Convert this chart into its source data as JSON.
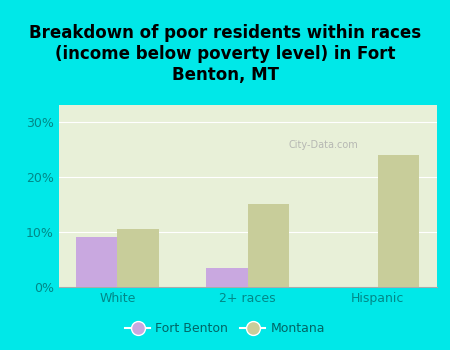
{
  "title": "Breakdown of poor residents within races\n(income below poverty level) in Fort\nBenton, MT",
  "categories": [
    "White",
    "2+ races",
    "Hispanic"
  ],
  "fort_benton_values": [
    9.0,
    3.5,
    0.0
  ],
  "montana_values": [
    10.5,
    15.0,
    24.0
  ],
  "fort_benton_color": "#c9a8e0",
  "montana_color": "#c8cd9a",
  "background_color": "#00e8e8",
  "plot_bg_color": "#e8f0d8",
  "ylim": [
    0,
    33
  ],
  "yticks": [
    0,
    10,
    20,
    30
  ],
  "ytick_labels": [
    "0%",
    "10%",
    "20%",
    "30%"
  ],
  "legend_fb": "Fort Benton",
  "legend_mt": "Montana",
  "bar_width": 0.32,
  "title_fontsize": 12,
  "tick_color": "#008888",
  "watermark": "City-Data.com"
}
